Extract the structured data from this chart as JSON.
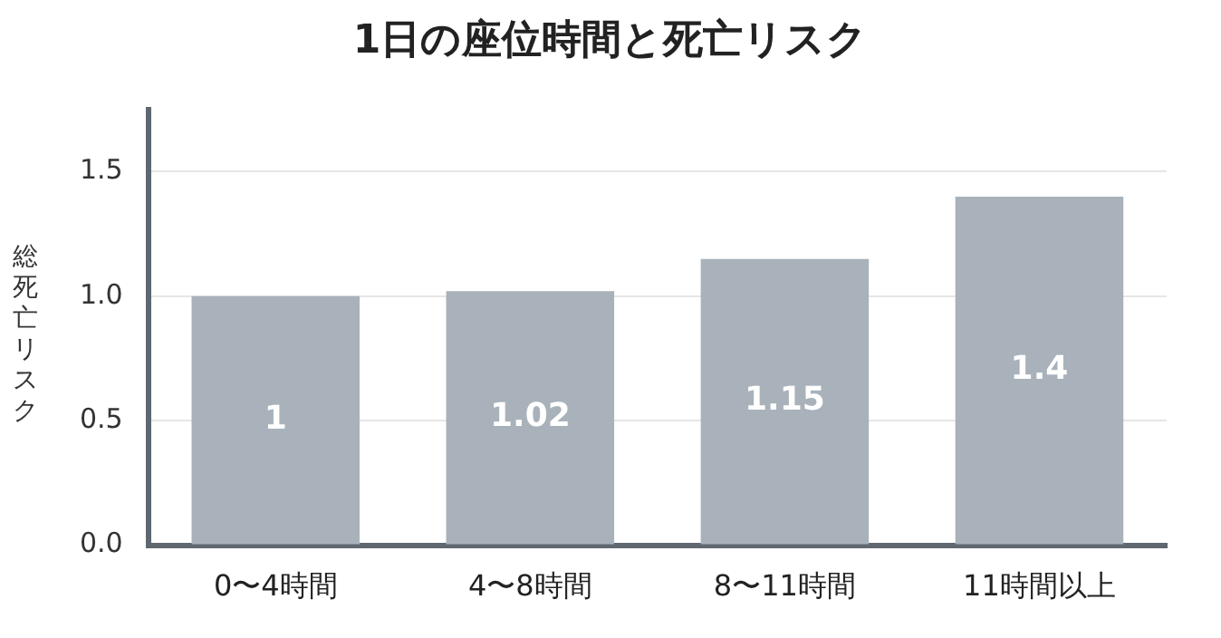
{
  "chart_data": {
    "type": "bar",
    "title": "1日の座位時間と死亡リスク",
    "ylabel": "総死亡リスク",
    "categories": [
      "0〜4時間",
      "4〜8時間",
      "8〜11時間",
      "11時間以上"
    ],
    "values": [
      1,
      1.02,
      1.15,
      1.4
    ],
    "color": "#a9b2ba",
    "ylim": [
      0,
      1.75
    ],
    "yticks": [
      {
        "value": 0,
        "label": "0.0"
      },
      {
        "value": 0.5,
        "label": "0.5"
      },
      {
        "value": 1,
        "label": "1.0"
      },
      {
        "value": 1.5,
        "label": "1.5"
      }
    ],
    "grid": "y",
    "data_labels": true,
    "legend": false
  }
}
